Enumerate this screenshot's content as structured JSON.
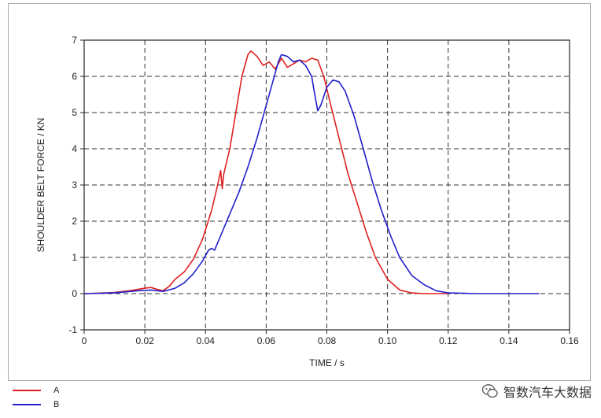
{
  "chart_data": {
    "type": "line",
    "xlabel": "TIME / s",
    "ylabel": "SHOULDER BELT FORCE / KN",
    "xlim": [
      0,
      0.16
    ],
    "ylim": [
      -1,
      7
    ],
    "xticks": [
      0,
      0.02,
      0.04,
      0.06,
      0.08,
      0.1,
      0.12,
      0.14,
      0.16
    ],
    "xtick_labels": [
      "0",
      "0.02",
      "0.04",
      "0.06",
      "0.08",
      "0.10",
      "0.12",
      "0.14",
      "0.16"
    ],
    "yticks": [
      -1,
      0,
      1,
      2,
      3,
      4,
      5,
      6,
      7
    ],
    "ytick_labels": [
      "-1",
      "0",
      "1",
      "2",
      "3",
      "4",
      "5",
      "6",
      "7"
    ],
    "grid": true,
    "legend_position": "bottom-left",
    "series": [
      {
        "name": "A",
        "color": "#e02020",
        "points": [
          [
            0,
            0
          ],
          [
            0.01,
            0.03
          ],
          [
            0.015,
            0.08
          ],
          [
            0.02,
            0.15
          ],
          [
            0.022,
            0.17
          ],
          [
            0.024,
            0.12
          ],
          [
            0.026,
            0.08
          ],
          [
            0.028,
            0.2
          ],
          [
            0.03,
            0.4
          ],
          [
            0.033,
            0.6
          ],
          [
            0.036,
            0.95
          ],
          [
            0.039,
            1.5
          ],
          [
            0.042,
            2.3
          ],
          [
            0.044,
            3.0
          ],
          [
            0.045,
            3.4
          ],
          [
            0.0455,
            2.9
          ],
          [
            0.046,
            3.3
          ],
          [
            0.048,
            4.0
          ],
          [
            0.05,
            5.0
          ],
          [
            0.052,
            6.0
          ],
          [
            0.054,
            6.6
          ],
          [
            0.055,
            6.7
          ],
          [
            0.057,
            6.55
          ],
          [
            0.059,
            6.3
          ],
          [
            0.061,
            6.4
          ],
          [
            0.063,
            6.2
          ],
          [
            0.065,
            6.5
          ],
          [
            0.067,
            6.25
          ],
          [
            0.069,
            6.35
          ],
          [
            0.071,
            6.45
          ],
          [
            0.073,
            6.4
          ],
          [
            0.075,
            6.5
          ],
          [
            0.077,
            6.45
          ],
          [
            0.079,
            6.0
          ],
          [
            0.081,
            5.3
          ],
          [
            0.084,
            4.3
          ],
          [
            0.087,
            3.3
          ],
          [
            0.09,
            2.5
          ],
          [
            0.093,
            1.7
          ],
          [
            0.096,
            1.0
          ],
          [
            0.1,
            0.4
          ],
          [
            0.104,
            0.1
          ],
          [
            0.108,
            0.02
          ],
          [
            0.112,
            0
          ],
          [
            0.12,
            0
          ]
        ]
      },
      {
        "name": "B",
        "color": "#2020cc",
        "points": [
          [
            0,
            0
          ],
          [
            0.01,
            0.02
          ],
          [
            0.018,
            0.08
          ],
          [
            0.022,
            0.1
          ],
          [
            0.026,
            0.06
          ],
          [
            0.03,
            0.15
          ],
          [
            0.033,
            0.3
          ],
          [
            0.036,
            0.55
          ],
          [
            0.039,
            0.9
          ],
          [
            0.041,
            1.2
          ],
          [
            0.042,
            1.25
          ],
          [
            0.043,
            1.2
          ],
          [
            0.045,
            1.6
          ],
          [
            0.048,
            2.2
          ],
          [
            0.051,
            2.8
          ],
          [
            0.054,
            3.5
          ],
          [
            0.057,
            4.3
          ],
          [
            0.06,
            5.2
          ],
          [
            0.062,
            5.8
          ],
          [
            0.064,
            6.4
          ],
          [
            0.065,
            6.6
          ],
          [
            0.067,
            6.55
          ],
          [
            0.069,
            6.4
          ],
          [
            0.071,
            6.45
          ],
          [
            0.073,
            6.3
          ],
          [
            0.075,
            6.0
          ],
          [
            0.076,
            5.5
          ],
          [
            0.077,
            5.05
          ],
          [
            0.078,
            5.2
          ],
          [
            0.08,
            5.7
          ],
          [
            0.082,
            5.9
          ],
          [
            0.084,
            5.85
          ],
          [
            0.086,
            5.6
          ],
          [
            0.089,
            4.9
          ],
          [
            0.092,
            4.0
          ],
          [
            0.095,
            3.1
          ],
          [
            0.098,
            2.3
          ],
          [
            0.101,
            1.6
          ],
          [
            0.104,
            1.0
          ],
          [
            0.108,
            0.5
          ],
          [
            0.112,
            0.25
          ],
          [
            0.116,
            0.08
          ],
          [
            0.12,
            0.02
          ],
          [
            0.13,
            0
          ],
          [
            0.15,
            0
          ]
        ]
      }
    ]
  },
  "watermark": "智数汽车大数据"
}
